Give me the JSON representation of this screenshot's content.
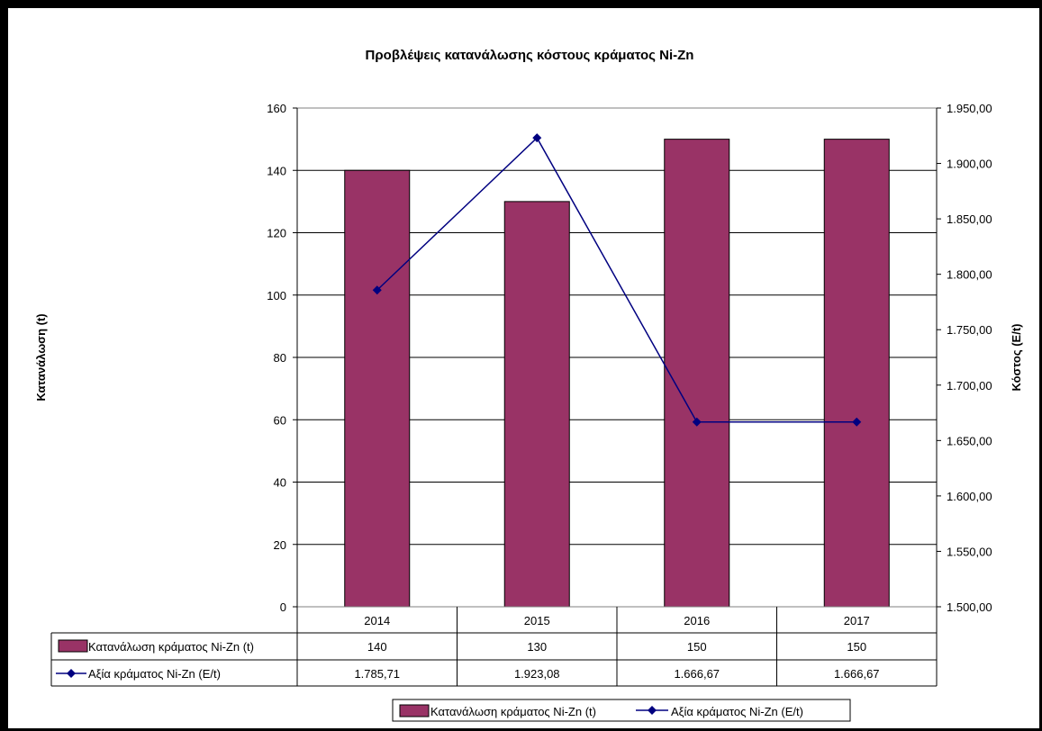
{
  "chart_data": {
    "type": "bar",
    "title": "Προβλέψεις κατανάλωσης κόστους κράματος Ni-Zn",
    "categories": [
      "2014",
      "2015",
      "2016",
      "2017"
    ],
    "y_left_label": "Κατανάλωση (t)",
    "y_right_label": "Κόστος (E/t)",
    "y_left_range": [
      0,
      160
    ],
    "y_left_ticks": [
      "0",
      "20",
      "40",
      "60",
      "80",
      "100",
      "120",
      "140",
      "160"
    ],
    "y_right_range": [
      1500,
      1950
    ],
    "y_right_ticks": [
      "1.500,00",
      "1.550,00",
      "1.600,00",
      "1.650,00",
      "1.700,00",
      "1.750,00",
      "1.800,00",
      "1.850,00",
      "1.900,00",
      "1.950,00"
    ],
    "gridlines": true,
    "series": [
      {
        "name": "Κατανάλωση κράματος Ni-Zn (t)",
        "type": "bar",
        "axis": "left",
        "color": "#993366",
        "values": [
          140,
          130,
          150,
          150
        ],
        "labels": [
          "140",
          "130",
          "150",
          "150"
        ]
      },
      {
        "name": "Αξία κράματος Ni-Zn (E/t)",
        "type": "line",
        "axis": "right",
        "color": "#000080",
        "values": [
          1785.71,
          1923.08,
          1666.67,
          1666.67
        ],
        "labels": [
          "1.785,71",
          "1.923,08",
          "1.666,67",
          "1.666,67"
        ]
      }
    ],
    "legend_position": "bottom"
  }
}
